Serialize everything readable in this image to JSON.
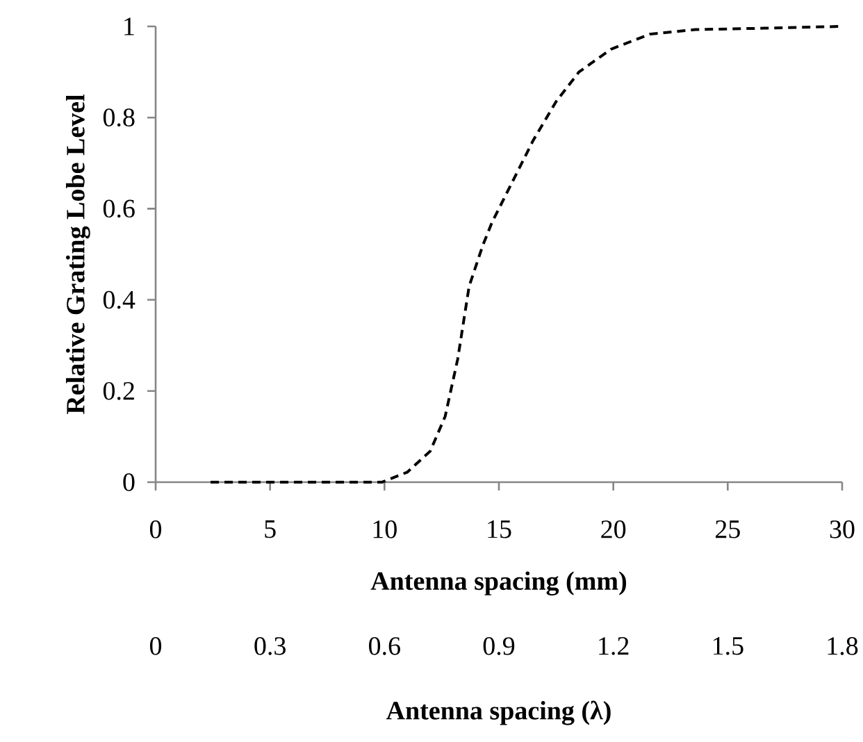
{
  "chart_data": {
    "type": "line",
    "xlabel": "**Antenna spacing (mm)**",
    "x2label": "**Antenna spacing (λ)**",
    "ylabel": "**Relative Grating Lobe Level**",
    "x": [
      2.4,
      5,
      7.4,
      9.0,
      9.9,
      11.0,
      12.0,
      12.65,
      13.2,
      13.7,
      14.3,
      14.7,
      15.5,
      16.5,
      17.5,
      18.5,
      19.9,
      21.6,
      23.6,
      26.6,
      30
    ],
    "values": [
      0,
      0,
      0,
      0,
      0,
      0.022,
      0.068,
      0.144,
      0.27,
      0.43,
      0.52,
      0.57,
      0.65,
      0.75,
      0.835,
      0.9,
      0.95,
      0.983,
      0.993,
      0.996,
      1.0
    ],
    "color": "#000000",
    "line_style": "dashed",
    "marker": "none",
    "xlim": [
      0,
      30
    ],
    "xticks": [
      0,
      5,
      10,
      15,
      20,
      25,
      30
    ],
    "x2lim": [
      0,
      1.8
    ],
    "x2ticks": [
      0,
      0.3,
      0.6,
      0.9,
      1.2,
      1.5,
      1.8
    ],
    "ylim": [
      0,
      1
    ],
    "yticks": [
      0,
      0.2,
      0.4,
      0.6,
      0.8,
      1
    ]
  }
}
